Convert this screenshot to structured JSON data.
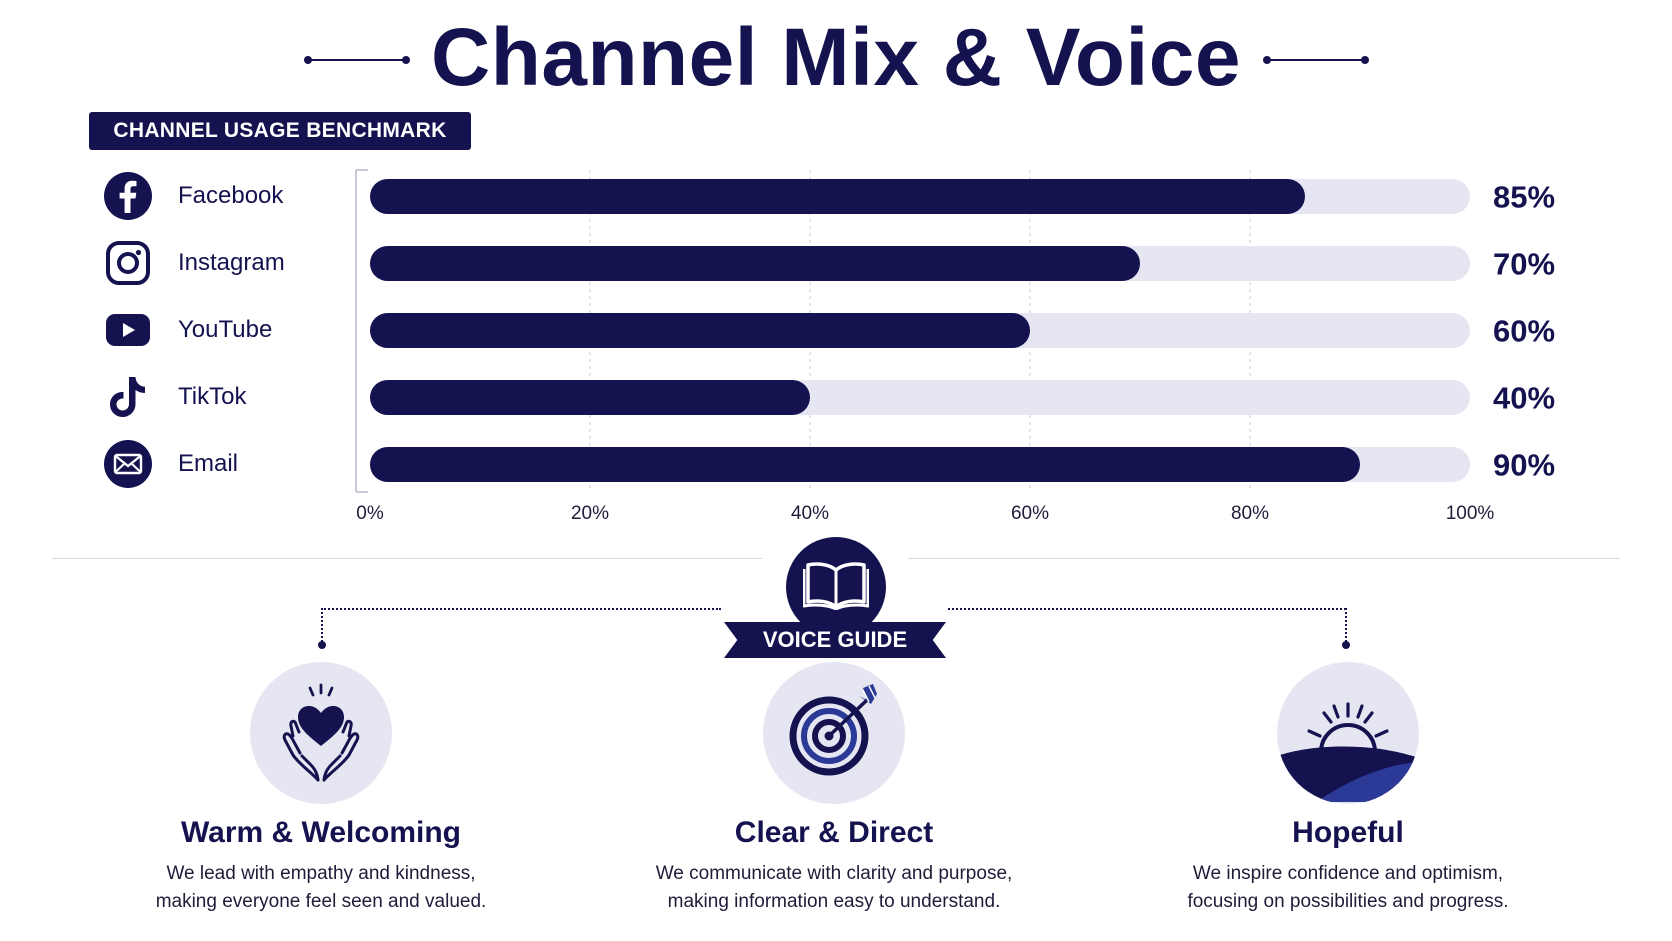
{
  "title": "Channel Mix & Voice",
  "badge": "CHANNEL USAGE BENCHMARK",
  "colors": {
    "navy": "#14124f",
    "track": "#e6e6f2",
    "grid": "#c9c9d6"
  },
  "chart_data": {
    "type": "bar",
    "orientation": "horizontal",
    "categories": [
      "Facebook",
      "Instagram",
      "YouTube",
      "TikTok",
      "Email"
    ],
    "icons": [
      "facebook-icon",
      "instagram-icon",
      "youtube-icon",
      "tiktok-icon",
      "email-icon"
    ],
    "values": [
      85,
      70,
      60,
      40,
      90
    ],
    "value_labels": [
      "85%",
      "70%",
      "60%",
      "40%",
      "90%"
    ],
    "xlim": [
      0,
      100
    ],
    "xticks": [
      0,
      20,
      40,
      60,
      80,
      100
    ],
    "xtick_labels": [
      "0%",
      "20%",
      "40%",
      "60%",
      "80%",
      "100%"
    ],
    "grid": true
  },
  "voice_guide": {
    "label": "VOICE GUIDE",
    "icon": "open-book-icon",
    "traits": [
      {
        "icon": "heart-hands-icon",
        "title": "Warm & Welcoming",
        "desc": [
          "We lead with empathy and kindness,",
          "making everyone feel seen and valued."
        ]
      },
      {
        "icon": "target-arrow-icon",
        "title": "Clear & Direct",
        "desc": [
          "We communicate with clarity and purpose,",
          "making information easy to understand."
        ]
      },
      {
        "icon": "sunrise-icon",
        "title": "Hopeful",
        "desc": [
          "We inspire confidence and optimism,",
          "focusing on possibilities and progress."
        ]
      }
    ]
  }
}
